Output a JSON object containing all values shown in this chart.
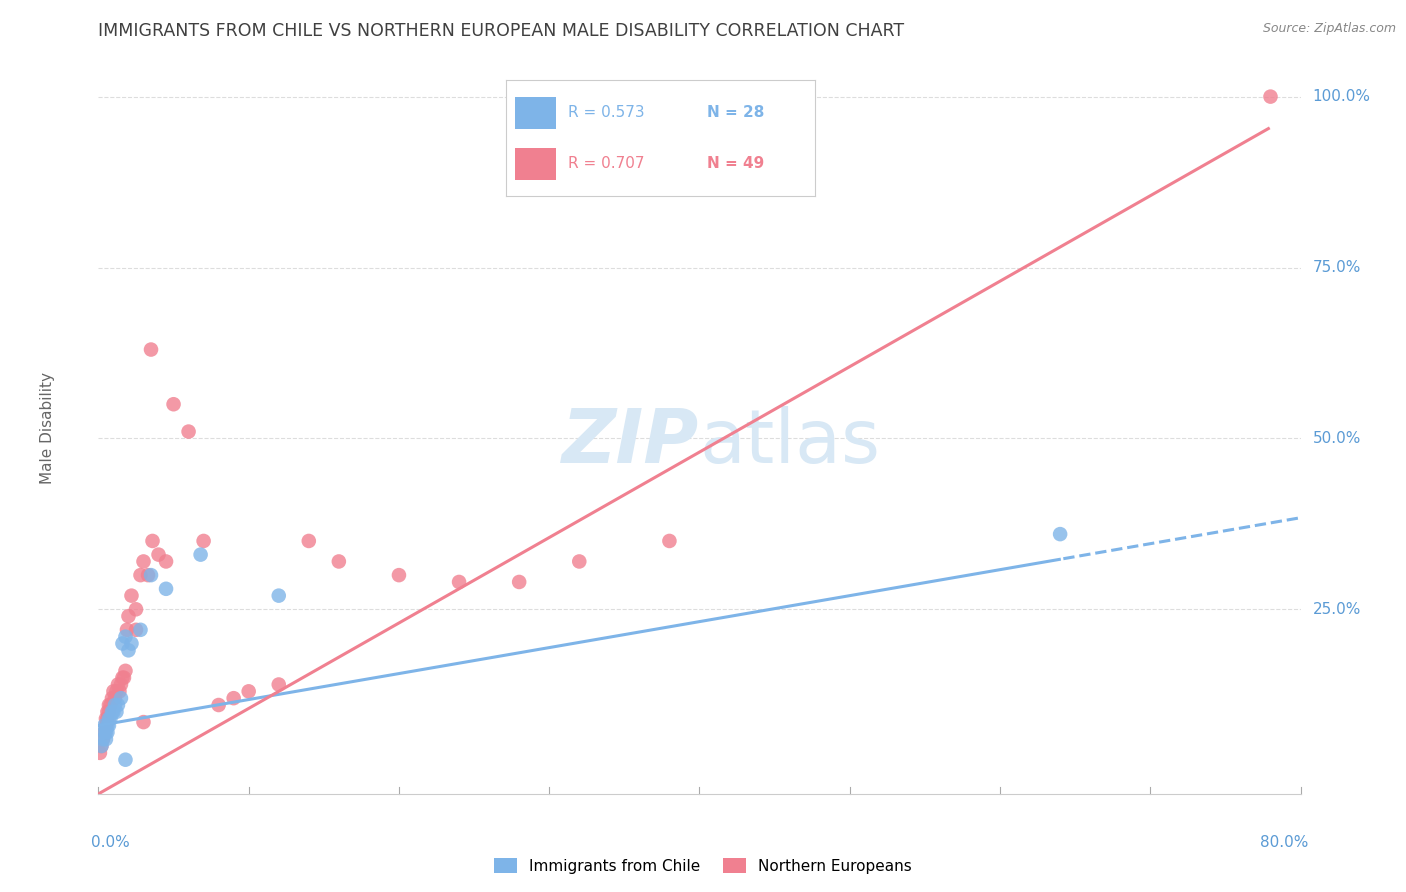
{
  "title": "IMMIGRANTS FROM CHILE VS NORTHERN EUROPEAN MALE DISABILITY CORRELATION CHART",
  "source": "Source: ZipAtlas.com",
  "ylabel": "Male Disability",
  "xmin": 0.0,
  "xmax": 0.8,
  "ymin": -0.02,
  "ymax": 1.05,
  "chile_R": 0.573,
  "chile_N": 28,
  "northern_R": 0.707,
  "northern_N": 49,
  "chile_color": "#7EB4E8",
  "northern_color": "#F08090",
  "chile_scatter_x": [
    0.002,
    0.003,
    0.004,
    0.004,
    0.005,
    0.005,
    0.006,
    0.006,
    0.007,
    0.007,
    0.008,
    0.009,
    0.01,
    0.011,
    0.012,
    0.013,
    0.015,
    0.016,
    0.018,
    0.02,
    0.022,
    0.028,
    0.035,
    0.045,
    0.068,
    0.12,
    0.64,
    0.018
  ],
  "chile_scatter_y": [
    0.05,
    0.06,
    0.07,
    0.08,
    0.06,
    0.07,
    0.08,
    0.07,
    0.08,
    0.09,
    0.09,
    0.1,
    0.1,
    0.11,
    0.1,
    0.11,
    0.12,
    0.2,
    0.21,
    0.19,
    0.2,
    0.22,
    0.3,
    0.28,
    0.33,
    0.27,
    0.36,
    0.03
  ],
  "northern_scatter_x": [
    0.001,
    0.002,
    0.003,
    0.004,
    0.005,
    0.005,
    0.006,
    0.006,
    0.007,
    0.007,
    0.008,
    0.009,
    0.01,
    0.011,
    0.012,
    0.013,
    0.014,
    0.015,
    0.016,
    0.017,
    0.018,
    0.019,
    0.02,
    0.022,
    0.025,
    0.028,
    0.03,
    0.033,
    0.036,
    0.04,
    0.045,
    0.05,
    0.06,
    0.07,
    0.08,
    0.09,
    0.1,
    0.12,
    0.14,
    0.16,
    0.2,
    0.24,
    0.28,
    0.32,
    0.38,
    0.03,
    0.025,
    0.035,
    0.78
  ],
  "northern_scatter_y": [
    0.04,
    0.05,
    0.06,
    0.07,
    0.08,
    0.09,
    0.09,
    0.1,
    0.1,
    0.11,
    0.11,
    0.12,
    0.13,
    0.12,
    0.13,
    0.14,
    0.13,
    0.14,
    0.15,
    0.15,
    0.16,
    0.22,
    0.24,
    0.27,
    0.25,
    0.3,
    0.32,
    0.3,
    0.35,
    0.33,
    0.32,
    0.55,
    0.51,
    0.35,
    0.11,
    0.12,
    0.13,
    0.14,
    0.35,
    0.32,
    0.3,
    0.29,
    0.29,
    0.32,
    0.35,
    0.085,
    0.22,
    0.63,
    1.0
  ],
  "background_color": "#ffffff",
  "grid_color": "#dddddd",
  "title_color": "#404040",
  "axis_color": "#5B9BD5",
  "watermark_color": "#d8e8f5",
  "ytick_positions": [
    0.25,
    0.5,
    0.75,
    1.0
  ],
  "ytick_labels": [
    "25.0%",
    "50.0%",
    "75.0%",
    "100.0%"
  ]
}
